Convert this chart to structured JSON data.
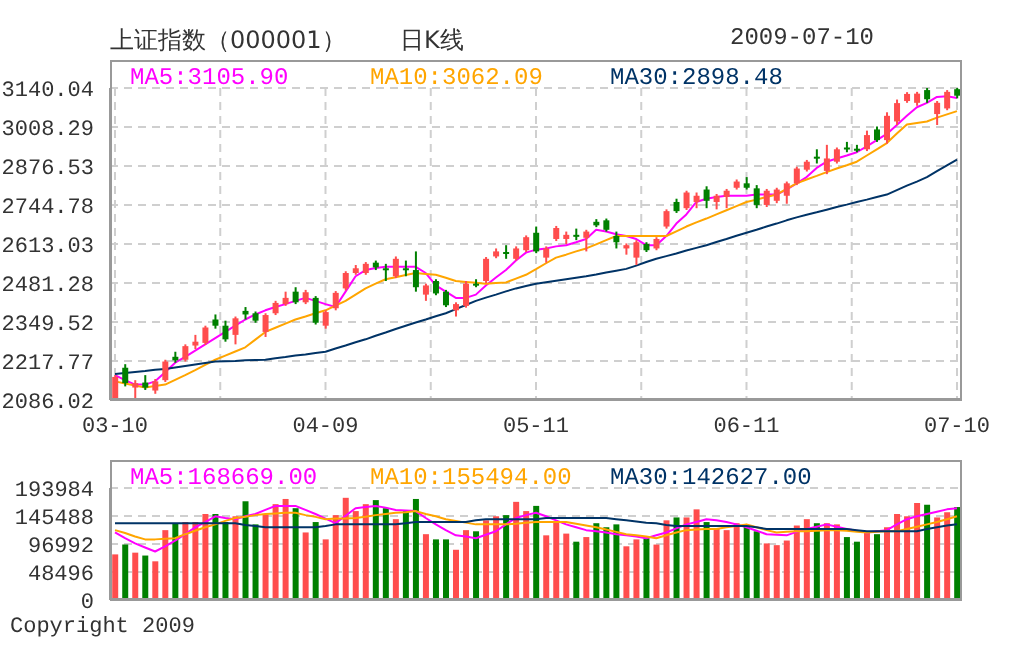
{
  "chart_data": [
    {
      "type": "candlestick",
      "title": "上证指数（000001）",
      "subtitle": "日K线",
      "annotations": [
        "2009-07-10"
      ],
      "categories": [
        "03-10",
        null,
        null,
        null,
        null,
        null,
        null,
        null,
        null,
        null,
        null,
        null,
        null,
        null,
        null,
        null,
        null,
        null,
        null,
        null,
        null,
        "04-09",
        null,
        null,
        null,
        null,
        null,
        null,
        null,
        null,
        null,
        null,
        null,
        null,
        null,
        null,
        null,
        null,
        null,
        null,
        null,
        null,
        "05-11",
        null,
        null,
        null,
        null,
        null,
        null,
        null,
        null,
        null,
        null,
        null,
        null,
        null,
        null,
        null,
        null,
        null,
        null,
        null,
        null,
        "06-11",
        null,
        null,
        null,
        null,
        null,
        null,
        null,
        null,
        null,
        null,
        null,
        null,
        null,
        null,
        null,
        null,
        null,
        null,
        null,
        null,
        "07-10"
      ],
      "ohlc": [
        [
          2092,
          2170,
          2086.02,
          2164
        ],
        [
          2195,
          2207,
          2132,
          2143
        ],
        [
          2128,
          2153,
          2090,
          2143
        ],
        [
          2145,
          2170,
          2120,
          2128
        ],
        [
          2118,
          2157,
          2107,
          2149
        ],
        [
          2153,
          2222,
          2147,
          2216
        ],
        [
          2232,
          2249,
          2212,
          2220
        ],
        [
          2222,
          2274,
          2216,
          2268
        ],
        [
          2270,
          2306,
          2258,
          2283
        ],
        [
          2279,
          2337,
          2272,
          2331
        ],
        [
          2358,
          2375,
          2327,
          2337
        ],
        [
          2337,
          2354,
          2283,
          2291
        ],
        [
          2306,
          2368,
          2274,
          2362
        ],
        [
          2387,
          2400,
          2358,
          2375
        ],
        [
          2379,
          2385,
          2347,
          2354
        ],
        [
          2316,
          2379,
          2299,
          2373
        ],
        [
          2379,
          2421,
          2373,
          2414
        ],
        [
          2410,
          2452,
          2404,
          2431
        ],
        [
          2452,
          2467,
          2410,
          2416
        ],
        [
          2416,
          2458,
          2410,
          2450
        ],
        [
          2431,
          2437,
          2341,
          2347
        ],
        [
          2337,
          2389,
          2327,
          2383
        ],
        [
          2396,
          2454,
          2389,
          2448
        ],
        [
          2463,
          2521,
          2456,
          2515
        ],
        [
          2515,
          2542,
          2509,
          2531
        ],
        [
          2515,
          2552,
          2509,
          2546
        ],
        [
          2550,
          2557,
          2525,
          2534
        ],
        [
          2531,
          2546,
          2488,
          2525
        ],
        [
          2504,
          2571,
          2498,
          2563
        ],
        [
          2531,
          2557,
          2504,
          2525
        ],
        [
          2525,
          2588,
          2452,
          2467
        ],
        [
          2442,
          2479,
          2421,
          2473
        ],
        [
          2488,
          2494,
          2440,
          2446
        ],
        [
          2452,
          2458,
          2400,
          2406
        ],
        [
          2389,
          2416,
          2368,
          2410
        ],
        [
          2404,
          2488,
          2398,
          2479
        ],
        [
          2479,
          2494,
          2467,
          2473
        ],
        [
          2488,
          2569,
          2481,
          2563
        ],
        [
          2571,
          2598,
          2565,
          2588
        ],
        [
          2586,
          2609,
          2563,
          2580
        ],
        [
          2563,
          2605,
          2557,
          2598
        ],
        [
          2592,
          2642,
          2586,
          2636
        ],
        [
          2651,
          2672,
          2582,
          2588
        ],
        [
          2567,
          2605,
          2550,
          2598
        ],
        [
          2630,
          2674,
          2623,
          2667
        ],
        [
          2630,
          2655,
          2613,
          2644
        ],
        [
          2644,
          2665,
          2626,
          2640
        ],
        [
          2634,
          2661,
          2588,
          2655
        ],
        [
          2688,
          2697,
          2670,
          2676
        ],
        [
          2693,
          2699,
          2655,
          2661
        ],
        [
          2640,
          2655,
          2598,
          2619
        ],
        [
          2598,
          2615,
          2577,
          2609
        ],
        [
          2567,
          2626,
          2542,
          2619
        ],
        [
          2613,
          2619,
          2586,
          2592
        ],
        [
          2598,
          2636,
          2592,
          2630
        ],
        [
          2672,
          2730,
          2665,
          2724
        ],
        [
          2755,
          2766,
          2718,
          2724
        ],
        [
          2734,
          2793,
          2728,
          2787
        ],
        [
          2755,
          2787,
          2734,
          2776
        ],
        [
          2797,
          2808,
          2734,
          2759
        ],
        [
          2755,
          2782,
          2730,
          2776
        ],
        [
          2772,
          2799,
          2734,
          2793
        ],
        [
          2803,
          2831,
          2797,
          2824
        ],
        [
          2818,
          2839,
          2797,
          2803
        ],
        [
          2801,
          2812,
          2734,
          2745
        ],
        [
          2745,
          2799,
          2738,
          2793
        ],
        [
          2759,
          2803,
          2751,
          2797
        ],
        [
          2776,
          2824,
          2749,
          2818
        ],
        [
          2818,
          2874,
          2812,
          2868
        ],
        [
          2864,
          2897,
          2858,
          2891
        ],
        [
          2908,
          2933,
          2885,
          2902
        ],
        [
          2860,
          2948,
          2849,
          2902
        ],
        [
          2891,
          2939,
          2885,
          2933
        ],
        [
          2939,
          2958,
          2923,
          2933
        ],
        [
          2935,
          2948,
          2923,
          2931
        ],
        [
          2933,
          2996,
          2927,
          2981
        ],
        [
          3000,
          3010,
          2958,
          2964
        ],
        [
          2964,
          3058,
          2952,
          3046
        ],
        [
          3027,
          3101,
          3015,
          3089
        ],
        [
          3096,
          3126,
          3090,
          3120
        ],
        [
          3090,
          3127,
          3080,
          3121
        ],
        [
          3133,
          3140.04,
          3090,
          3102
        ],
        [
          3052,
          3096,
          3015,
          3090
        ],
        [
          3071,
          3133,
          3065,
          3127
        ],
        [
          3136,
          3140.04,
          3105,
          3114
        ]
      ],
      "colors": [
        "#ff4d4d",
        "#008000",
        "#ff4d4d",
        "#008000",
        "#ff4d4d",
        "#ff4d4d",
        "#008000",
        "#ff4d4d",
        "#ff4d4d",
        "#ff4d4d",
        "#008000",
        "#008000",
        "#ff4d4d",
        "#008000",
        "#008000",
        "#ff4d4d",
        "#ff4d4d",
        "#ff4d4d",
        "#008000",
        "#ff4d4d",
        "#008000",
        "#ff4d4d",
        "#ff4d4d",
        "#ff4d4d",
        "#ff4d4d",
        "#ff4d4d",
        "#008000",
        "#008000",
        "#ff4d4d",
        "#008000",
        "#008000",
        "#ff4d4d",
        "#008000",
        "#008000",
        "#ff4d4d",
        "#ff4d4d",
        "#008000",
        "#ff4d4d",
        "#ff4d4d",
        "#008000",
        "#ff4d4d",
        "#ff4d4d",
        "#008000",
        "#ff4d4d",
        "#ff4d4d",
        "#ff4d4d",
        "#008000",
        "#ff4d4d",
        "#008000",
        "#008000",
        "#008000",
        "#ff4d4d",
        "#ff4d4d",
        "#008000",
        "#ff4d4d",
        "#ff4d4d",
        "#008000",
        "#ff4d4d",
        "#ff4d4d",
        "#008000",
        "#ff4d4d",
        "#ff4d4d",
        "#ff4d4d",
        "#008000",
        "#008000",
        "#ff4d4d",
        "#ff4d4d",
        "#ff4d4d",
        "#ff4d4d",
        "#ff4d4d",
        "#008000",
        "#ff4d4d",
        "#ff4d4d",
        "#008000",
        "#008000",
        "#ff4d4d",
        "#008000",
        "#ff4d4d",
        "#ff4d4d",
        "#ff4d4d",
        "#ff4d4d",
        "#008000",
        "#ff4d4d",
        "#ff4d4d",
        "#008000"
      ],
      "series": [
        {
          "name": "MA5:3105.90",
          "type": "line",
          "color": "#ff00ff",
          "values": [
            2170,
            2153,
            2138,
            2138,
            2149,
            2180,
            2212,
            2232,
            2253,
            2274,
            2295,
            2316,
            2337,
            2358,
            2375,
            2389,
            2400,
            2410,
            2421,
            2431,
            2421,
            2410,
            2400,
            2452,
            2504,
            2525,
            2532,
            2536,
            2536,
            2536,
            2536,
            2515,
            2473,
            2452,
            2431,
            2431,
            2442,
            2473,
            2500,
            2525,
            2557,
            2584,
            2594,
            2598,
            2605,
            2609,
            2619,
            2630,
            2661,
            2655,
            2646,
            2640,
            2630,
            2609,
            2609,
            2640,
            2682,
            2713,
            2755,
            2766,
            2772,
            2776,
            2776,
            2776,
            2780,
            2780,
            2780,
            2797,
            2818,
            2839,
            2870,
            2891,
            2902,
            2912,
            2923,
            2943,
            2964,
            2985,
            3015,
            3046,
            3075,
            3090,
            3110,
            3112,
            3106
          ]
        },
        {
          "name": "MA10:3062.09",
          "type": "line",
          "color": "#ffa500",
          "values": [
            2149,
            2142,
            2135,
            2128,
            2133,
            2138,
            2154,
            2170,
            2187,
            2205,
            2222,
            2236,
            2250,
            2264,
            2290,
            2316,
            2330,
            2344,
            2358,
            2368,
            2379,
            2389,
            2405,
            2421,
            2442,
            2463,
            2479,
            2494,
            2501,
            2508,
            2515,
            2512,
            2509,
            2499,
            2488,
            2485,
            2482,
            2479,
            2481,
            2483,
            2496,
            2509,
            2528,
            2548,
            2567,
            2577,
            2588,
            2598,
            2612,
            2626,
            2640,
            2640,
            2640,
            2640,
            2640,
            2640,
            2656,
            2672,
            2686,
            2699,
            2713,
            2727,
            2741,
            2755,
            2763,
            2772,
            2780,
            2799,
            2818,
            2831,
            2843,
            2856,
            2868,
            2879,
            2891,
            2912,
            2933,
            2954,
            2986,
            3017,
            3022,
            3027,
            3040,
            3051,
            3062
          ]
        },
        {
          "name": "MA30:2898.48",
          "type": "line",
          "color": "#003366",
          "values": [
            2174,
            2177,
            2181,
            2184,
            2188,
            2191,
            2196,
            2201,
            2206,
            2211,
            2216,
            2217,
            2218,
            2220,
            2221,
            2222,
            2227,
            2231,
            2236,
            2240,
            2245,
            2249,
            2260,
            2270,
            2281,
            2291,
            2303,
            2314,
            2326,
            2337,
            2348,
            2358,
            2369,
            2379,
            2393,
            2407,
            2421,
            2432,
            2442,
            2453,
            2463,
            2471,
            2479,
            2484,
            2489,
            2494,
            2499,
            2504,
            2510,
            2517,
            2523,
            2529,
            2540,
            2552,
            2563,
            2572,
            2581,
            2591,
            2600,
            2609,
            2620,
            2630,
            2641,
            2651,
            2661,
            2672,
            2682,
            2693,
            2703,
            2712,
            2720,
            2729,
            2738,
            2746,
            2755,
            2763,
            2772,
            2780,
            2795,
            2810,
            2824,
            2839,
            2859,
            2879,
            2898
          ]
        }
      ],
      "ylim": [
        2086.02,
        3140.04
      ],
      "yticks": [
        2086.02,
        2217.77,
        2349.52,
        2481.28,
        2613.03,
        2744.78,
        2876.53,
        3008.29,
        3140.04
      ],
      "grid": true,
      "legend": "top"
    },
    {
      "type": "bar",
      "annotations": [
        "Copyright 2009"
      ],
      "categories": [
        null,
        null,
        null,
        null,
        null,
        null,
        null,
        null,
        null,
        null,
        null,
        null,
        null,
        null,
        null,
        null,
        null,
        null,
        null,
        null,
        null,
        null,
        null,
        null,
        null,
        null,
        null,
        null,
        null,
        null,
        null,
        null,
        null,
        null,
        null,
        null,
        null,
        null,
        null,
        null,
        null,
        null,
        null,
        null,
        null,
        null,
        null,
        null,
        null,
        null,
        null,
        null,
        null,
        null,
        null,
        null,
        null,
        null,
        null,
        null,
        null,
        null,
        null,
        null,
        null,
        null,
        null,
        null,
        null,
        null,
        null,
        null,
        null,
        null,
        null,
        null,
        null,
        null,
        null,
        null,
        null,
        null,
        null,
        null,
        null
      ],
      "series": [
        {
          "type": "bar",
          "values": [
            79000,
            96000,
            82000,
            77000,
            67000,
            121000,
            133000,
            135000,
            135000,
            149000,
            149000,
            135000,
            145000,
            171000,
            131000,
            148000,
            166000,
            175000,
            159000,
            117000,
            135000,
            105000,
            147000,
            177000,
            154000,
            166000,
            173000,
            159000,
            140000,
            154000,
            175000,
            114000,
            105000,
            105000,
            87000,
            121000,
            119000,
            138000,
            145000,
            147000,
            170000,
            154000,
            163000,
            112000,
            135000,
            115000,
            101000,
            109000,
            133000,
            126000,
            131000,
            93000,
            105000,
            107000,
            96000,
            138000,
            143000,
            143000,
            157000,
            135000,
            124000,
            121000,
            133000,
            129000,
            119000,
            98000,
            95000,
            103000,
            129000,
            140000,
            133000,
            133000,
            131000,
            109000,
            101000,
            117000,
            114000,
            126000,
            149000,
            145000,
            168000,
            165000,
            143000,
            152000,
            161000
          ],
          "colors": [
            "#ff4d4d",
            "#008000",
            "#ff4d4d",
            "#008000",
            "#ff4d4d",
            "#ff4d4d",
            "#008000",
            "#ff4d4d",
            "#ff4d4d",
            "#ff4d4d",
            "#008000",
            "#008000",
            "#ff4d4d",
            "#008000",
            "#008000",
            "#ff4d4d",
            "#ff4d4d",
            "#ff4d4d",
            "#008000",
            "#ff4d4d",
            "#008000",
            "#ff4d4d",
            "#ff4d4d",
            "#ff4d4d",
            "#ff4d4d",
            "#ff4d4d",
            "#008000",
            "#008000",
            "#ff4d4d",
            "#008000",
            "#008000",
            "#ff4d4d",
            "#008000",
            "#008000",
            "#ff4d4d",
            "#ff4d4d",
            "#008000",
            "#ff4d4d",
            "#ff4d4d",
            "#008000",
            "#ff4d4d",
            "#ff4d4d",
            "#008000",
            "#ff4d4d",
            "#ff4d4d",
            "#ff4d4d",
            "#008000",
            "#ff4d4d",
            "#008000",
            "#008000",
            "#008000",
            "#ff4d4d",
            "#ff4d4d",
            "#008000",
            "#ff4d4d",
            "#ff4d4d",
            "#008000",
            "#ff4d4d",
            "#ff4d4d",
            "#008000",
            "#ff4d4d",
            "#ff4d4d",
            "#ff4d4d",
            "#008000",
            "#008000",
            "#ff4d4d",
            "#ff4d4d",
            "#ff4d4d",
            "#ff4d4d",
            "#ff4d4d",
            "#008000",
            "#ff4d4d",
            "#ff4d4d",
            "#008000",
            "#008000",
            "#ff4d4d",
            "#008000",
            "#ff4d4d",
            "#ff4d4d",
            "#ff4d4d",
            "#ff4d4d",
            "#008000",
            "#ff4d4d",
            "#ff4d4d",
            "#008000"
          ]
        },
        {
          "name": "MA5:168669.00",
          "type": "line",
          "color": "#ff00ff",
          "values": [
            117000,
            107000,
            98000,
            91000,
            84000,
            93000,
            103000,
            114000,
            126000,
            135000,
            145000,
            142000,
            140000,
            145000,
            149000,
            156000,
            163000,
            163000,
            163000,
            156000,
            149000,
            141000,
            133000,
            146000,
            159000,
            161000,
            163000,
            160000,
            156000,
            155000,
            154000,
            142000,
            131000,
            121000,
            112000,
            110000,
            107000,
            113000,
            119000,
            131000,
            142000,
            147000,
            151000,
            145000,
            138000,
            131000,
            126000,
            121000,
            119000,
            117000,
            114000,
            112000,
            110000,
            107000,
            112000,
            117000,
            124000,
            131000,
            135000,
            140000,
            138000,
            135000,
            131000,
            126000,
            120000,
            114000,
            113000,
            112000,
            118000,
            123000,
            127000,
            131000,
            127000,
            123000,
            120000,
            117000,
            119000,
            121000,
            131000,
            140000,
            145000,
            149000,
            153000,
            157000,
            159000
          ]
        },
        {
          "name": "MA10:155494.00",
          "type": "line",
          "color": "#ffa500",
          "values": [
            121000,
            116000,
            110000,
            105000,
            105000,
            106000,
            107000,
            114000,
            120000,
            126000,
            131000,
            137000,
            142000,
            144000,
            147000,
            149000,
            150000,
            151000,
            151000,
            147000,
            144000,
            140000,
            141000,
            141000,
            142000,
            144000,
            147000,
            149000,
            151000,
            152000,
            154000,
            149000,
            145000,
            140000,
            137000,
            134000,
            131000,
            131000,
            131000,
            131000,
            132000,
            134000,
            135000,
            135000,
            135000,
            135000,
            132000,
            129000,
            126000,
            122000,
            118000,
            114000,
            112000,
            110000,
            107000,
            112000,
            117000,
            121000,
            122000,
            123000,
            123000,
            126000,
            128000,
            131000,
            126000,
            121000,
            117000,
            118000,
            119000,
            119000,
            120000,
            121000,
            121000,
            120000,
            118000,
            117000,
            118000,
            119000,
            119000,
            123000,
            127000,
            131000,
            135000,
            140000,
            145000
          ]
        },
        {
          "name": "MA30:142627.00",
          "type": "line",
          "color": "#003366",
          "values": [
            133000,
            133000,
            133000,
            133000,
            133000,
            133000,
            133000,
            133000,
            133000,
            133000,
            133000,
            133000,
            133000,
            130000,
            128000,
            126000,
            126000,
            126000,
            126000,
            126000,
            126000,
            128000,
            131000,
            131000,
            131000,
            131000,
            131000,
            131000,
            131000,
            133000,
            135000,
            135000,
            135000,
            135000,
            135000,
            135000,
            138000,
            140000,
            140000,
            140000,
            140000,
            140000,
            140000,
            142000,
            142000,
            142000,
            142000,
            142000,
            142000,
            142000,
            140000,
            138000,
            136000,
            134000,
            133000,
            130000,
            128000,
            128000,
            128000,
            128000,
            128000,
            128000,
            128000,
            128000,
            126000,
            123000,
            123000,
            123000,
            123000,
            123000,
            123000,
            123000,
            123000,
            123000,
            121000,
            119000,
            119000,
            119000,
            119000,
            119000,
            119000,
            123000,
            126000,
            129000,
            131000
          ]
        }
      ],
      "ylim": [
        0,
        193984
      ],
      "yticks": [
        0,
        48496,
        96992,
        145488,
        193984
      ],
      "grid": true,
      "legend": "top",
      "tick_labels": "y"
    }
  ]
}
